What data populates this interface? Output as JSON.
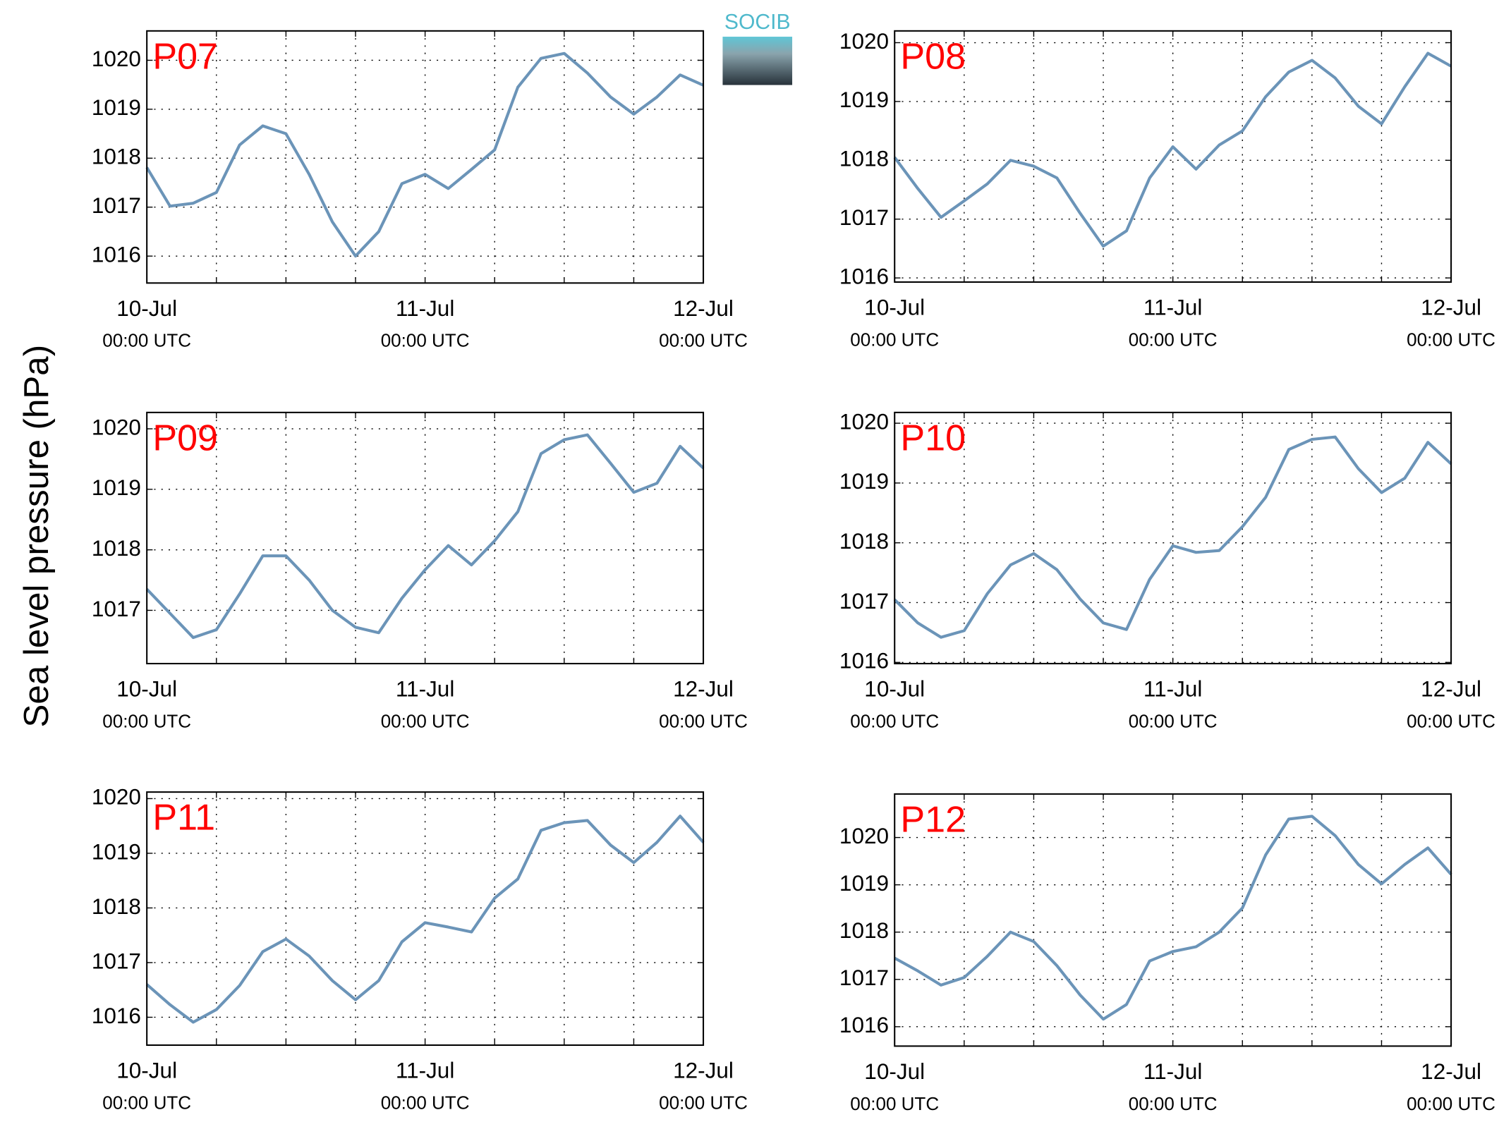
{
  "shared_ylabel": "Sea level pressure (hPa)",
  "logo": "SOCIB",
  "chart_data": [
    {
      "type": "line",
      "title": "P07",
      "color": "#6b94b8",
      "grid": true,
      "x": [
        0,
        2,
        4,
        6,
        8,
        10,
        12,
        14,
        16,
        18,
        20,
        22,
        24,
        26,
        28,
        30,
        32,
        34,
        36,
        38,
        40,
        42,
        44,
        46,
        48
      ],
      "values": [
        1017.81,
        1017.02,
        1017.08,
        1017.3,
        1018.27,
        1018.66,
        1018.5,
        1017.67,
        1016.7,
        1016.0,
        1016.5,
        1017.48,
        1017.67,
        1017.38,
        1017.77,
        1018.17,
        1019.45,
        1020.04,
        1020.14,
        1019.74,
        1019.25,
        1018.9,
        1019.25,
        1019.7,
        1019.49
      ],
      "xlim": [
        0,
        48
      ],
      "ylim": [
        1015.45,
        1020.6
      ],
      "yticks": [
        1016,
        1017,
        1018,
        1019,
        1020
      ],
      "xticks": [
        {
          "value": 0,
          "label": "10-Jul",
          "sublabel": "00:00 UTC"
        },
        {
          "value": 6,
          "label": null
        },
        {
          "value": 12,
          "label": null
        },
        {
          "value": 18,
          "label": null
        },
        {
          "value": 24,
          "label": "11-Jul",
          "sublabel": "00:00 UTC"
        },
        {
          "value": 30,
          "label": null
        },
        {
          "value": 36,
          "label": null
        },
        {
          "value": 42,
          "label": null
        },
        {
          "value": 48,
          "label": "12-Jul",
          "sublabel": "00:00 UTC"
        }
      ]
    },
    {
      "type": "line",
      "title": "P08",
      "color": "#6b94b8",
      "grid": true,
      "x": [
        0,
        2,
        4,
        6,
        8,
        10,
        12,
        14,
        16,
        18,
        20,
        22,
        24,
        26,
        28,
        30,
        32,
        34,
        36,
        38,
        40,
        42,
        44,
        46,
        48
      ],
      "values": [
        1018.05,
        1017.52,
        1017.03,
        1017.31,
        1017.6,
        1018.0,
        1017.9,
        1017.7,
        1017.1,
        1016.54,
        1016.8,
        1017.7,
        1018.23,
        1017.85,
        1018.26,
        1018.5,
        1019.08,
        1019.5,
        1019.7,
        1019.4,
        1018.92,
        1018.62,
        1019.25,
        1019.82,
        1019.6
      ],
      "xlim": [
        0,
        48
      ],
      "ylim": [
        1015.93,
        1020.2
      ],
      "yticks": [
        1016,
        1017,
        1018,
        1019,
        1020
      ],
      "xticks": [
        {
          "value": 0,
          "label": "10-Jul",
          "sublabel": "00:00 UTC"
        },
        {
          "value": 6,
          "label": null
        },
        {
          "value": 12,
          "label": null
        },
        {
          "value": 18,
          "label": null
        },
        {
          "value": 24,
          "label": "11-Jul",
          "sublabel": "00:00 UTC"
        },
        {
          "value": 30,
          "label": null
        },
        {
          "value": 36,
          "label": null
        },
        {
          "value": 42,
          "label": null
        },
        {
          "value": 48,
          "label": "12-Jul",
          "sublabel": "00:00 UTC"
        }
      ]
    },
    {
      "type": "line",
      "title": "P09",
      "color": "#6b94b8",
      "grid": true,
      "x": [
        0,
        2,
        4,
        6,
        8,
        10,
        12,
        14,
        16,
        18,
        20,
        22,
        24,
        26,
        28,
        30,
        32,
        34,
        36,
        38,
        40,
        42,
        44,
        46,
        48
      ],
      "values": [
        1017.35,
        1016.95,
        1016.55,
        1016.68,
        1017.27,
        1017.9,
        1017.9,
        1017.5,
        1017.0,
        1016.72,
        1016.63,
        1017.2,
        1017.67,
        1018.07,
        1017.75,
        1018.15,
        1018.63,
        1019.59,
        1019.82,
        1019.9,
        1019.43,
        1018.95,
        1019.1,
        1019.71,
        1019.35
      ],
      "xlim": [
        0,
        48
      ],
      "ylim": [
        1016.12,
        1020.27
      ],
      "yticks": [
        1017,
        1018,
        1019,
        1020
      ],
      "xticks": [
        {
          "value": 0,
          "label": "10-Jul",
          "sublabel": "00:00 UTC"
        },
        {
          "value": 6,
          "label": null
        },
        {
          "value": 12,
          "label": null
        },
        {
          "value": 18,
          "label": null
        },
        {
          "value": 24,
          "label": "11-Jul",
          "sublabel": "00:00 UTC"
        },
        {
          "value": 30,
          "label": null
        },
        {
          "value": 36,
          "label": null
        },
        {
          "value": 42,
          "label": null
        },
        {
          "value": 48,
          "label": "12-Jul",
          "sublabel": "00:00 UTC"
        }
      ]
    },
    {
      "type": "line",
      "title": "P10",
      "color": "#6b94b8",
      "grid": true,
      "x": [
        0,
        2,
        4,
        6,
        8,
        10,
        12,
        14,
        16,
        18,
        20,
        22,
        24,
        26,
        28,
        30,
        32,
        34,
        36,
        38,
        40,
        42,
        44,
        46,
        48
      ],
      "values": [
        1017.05,
        1016.66,
        1016.42,
        1016.53,
        1017.15,
        1017.63,
        1017.82,
        1017.55,
        1017.06,
        1016.66,
        1016.55,
        1017.39,
        1017.95,
        1017.84,
        1017.87,
        1018.27,
        1018.76,
        1019.56,
        1019.73,
        1019.77,
        1019.24,
        1018.84,
        1019.08,
        1019.68,
        1019.32
      ],
      "xlim": [
        0,
        48
      ],
      "ylim": [
        1015.98,
        1020.18
      ],
      "yticks": [
        1016,
        1017,
        1018,
        1019,
        1020
      ],
      "xticks": [
        {
          "value": 0,
          "label": "10-Jul",
          "sublabel": "00:00 UTC"
        },
        {
          "value": 6,
          "label": null
        },
        {
          "value": 12,
          "label": null
        },
        {
          "value": 18,
          "label": null
        },
        {
          "value": 24,
          "label": "11-Jul",
          "sublabel": "00:00 UTC"
        },
        {
          "value": 30,
          "label": null
        },
        {
          "value": 36,
          "label": null
        },
        {
          "value": 42,
          "label": null
        },
        {
          "value": 48,
          "label": "12-Jul",
          "sublabel": "00:00 UTC"
        }
      ]
    },
    {
      "type": "line",
      "title": "P11",
      "color": "#6b94b8",
      "grid": true,
      "x": [
        0,
        2,
        4,
        6,
        8,
        10,
        12,
        14,
        16,
        18,
        20,
        22,
        24,
        26,
        28,
        30,
        32,
        34,
        36,
        38,
        40,
        42,
        44,
        46,
        48
      ],
      "values": [
        1016.6,
        1016.23,
        1015.91,
        1016.14,
        1016.58,
        1017.2,
        1017.43,
        1017.12,
        1016.67,
        1016.32,
        1016.67,
        1017.38,
        1017.73,
        1017.65,
        1017.56,
        1018.18,
        1018.53,
        1019.42,
        1019.56,
        1019.6,
        1019.15,
        1018.83,
        1019.2,
        1019.68,
        1019.2
      ],
      "xlim": [
        0,
        48
      ],
      "ylim": [
        1015.49,
        1020.12
      ],
      "yticks": [
        1016,
        1017,
        1018,
        1019,
        1020
      ],
      "xticks": [
        {
          "value": 0,
          "label": "10-Jul",
          "sublabel": "00:00 UTC"
        },
        {
          "value": 6,
          "label": null
        },
        {
          "value": 12,
          "label": null
        },
        {
          "value": 18,
          "label": null
        },
        {
          "value": 24,
          "label": "11-Jul",
          "sublabel": "00:00 UTC"
        },
        {
          "value": 30,
          "label": null
        },
        {
          "value": 36,
          "label": null
        },
        {
          "value": 42,
          "label": null
        },
        {
          "value": 48,
          "label": "12-Jul",
          "sublabel": "00:00 UTC"
        }
      ]
    },
    {
      "type": "line",
      "title": "P12",
      "color": "#6b94b8",
      "grid": true,
      "x": [
        0,
        2,
        4,
        6,
        8,
        10,
        12,
        14,
        16,
        18,
        20,
        22,
        24,
        26,
        28,
        30,
        32,
        34,
        36,
        38,
        40,
        42,
        44,
        46,
        48
      ],
      "values": [
        1017.45,
        1017.18,
        1016.88,
        1017.04,
        1017.49,
        1018.0,
        1017.8,
        1017.29,
        1016.67,
        1016.16,
        1016.47,
        1017.39,
        1017.59,
        1017.69,
        1018.0,
        1018.51,
        1019.63,
        1020.39,
        1020.45,
        1020.04,
        1019.43,
        1019.02,
        1019.43,
        1019.78,
        1019.22
      ],
      "xlim": [
        0,
        48
      ],
      "ylim": [
        1015.59,
        1020.92
      ],
      "yticks": [
        1016,
        1017,
        1018,
        1019,
        1020
      ],
      "xticks": [
        {
          "value": 0,
          "label": "10-Jul",
          "sublabel": "00:00 UTC"
        },
        {
          "value": 6,
          "label": null
        },
        {
          "value": 12,
          "label": null
        },
        {
          "value": 18,
          "label": null
        },
        {
          "value": 24,
          "label": "11-Jul",
          "sublabel": "00:00 UTC"
        },
        {
          "value": 30,
          "label": null
        },
        {
          "value": 36,
          "label": null
        },
        {
          "value": 42,
          "label": null
        },
        {
          "value": 48,
          "label": "12-Jul",
          "sublabel": "00:00 UTC"
        }
      ]
    }
  ]
}
